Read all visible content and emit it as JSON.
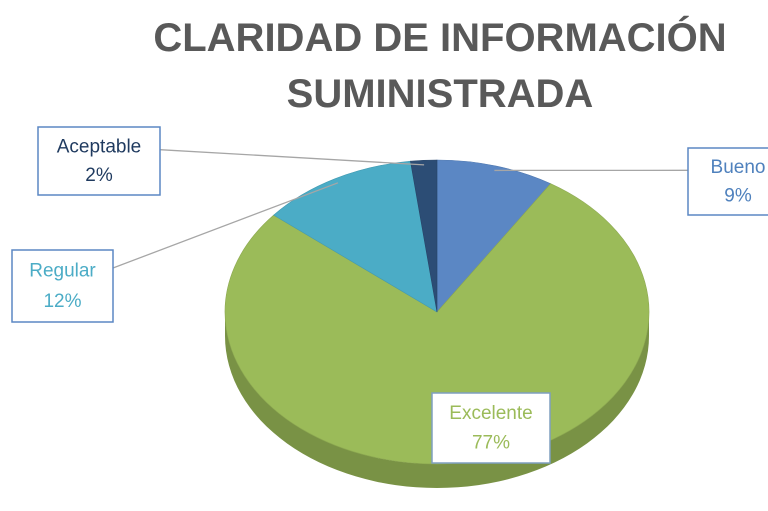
{
  "chart_data": {
    "type": "pie",
    "title": "CLARIDAD DE INFORMACIÓN SUMINISTRADA",
    "categories": [
      "Bueno",
      "Excelente",
      "Regular",
      "Aceptable"
    ],
    "values": [
      9,
      77,
      12,
      2
    ],
    "value_labels": [
      "9%",
      "77%",
      "12%",
      "2%"
    ],
    "colors": [
      "#5b87c4",
      "#9bbb59",
      "#4bacc6",
      "#2c4d75"
    ]
  }
}
